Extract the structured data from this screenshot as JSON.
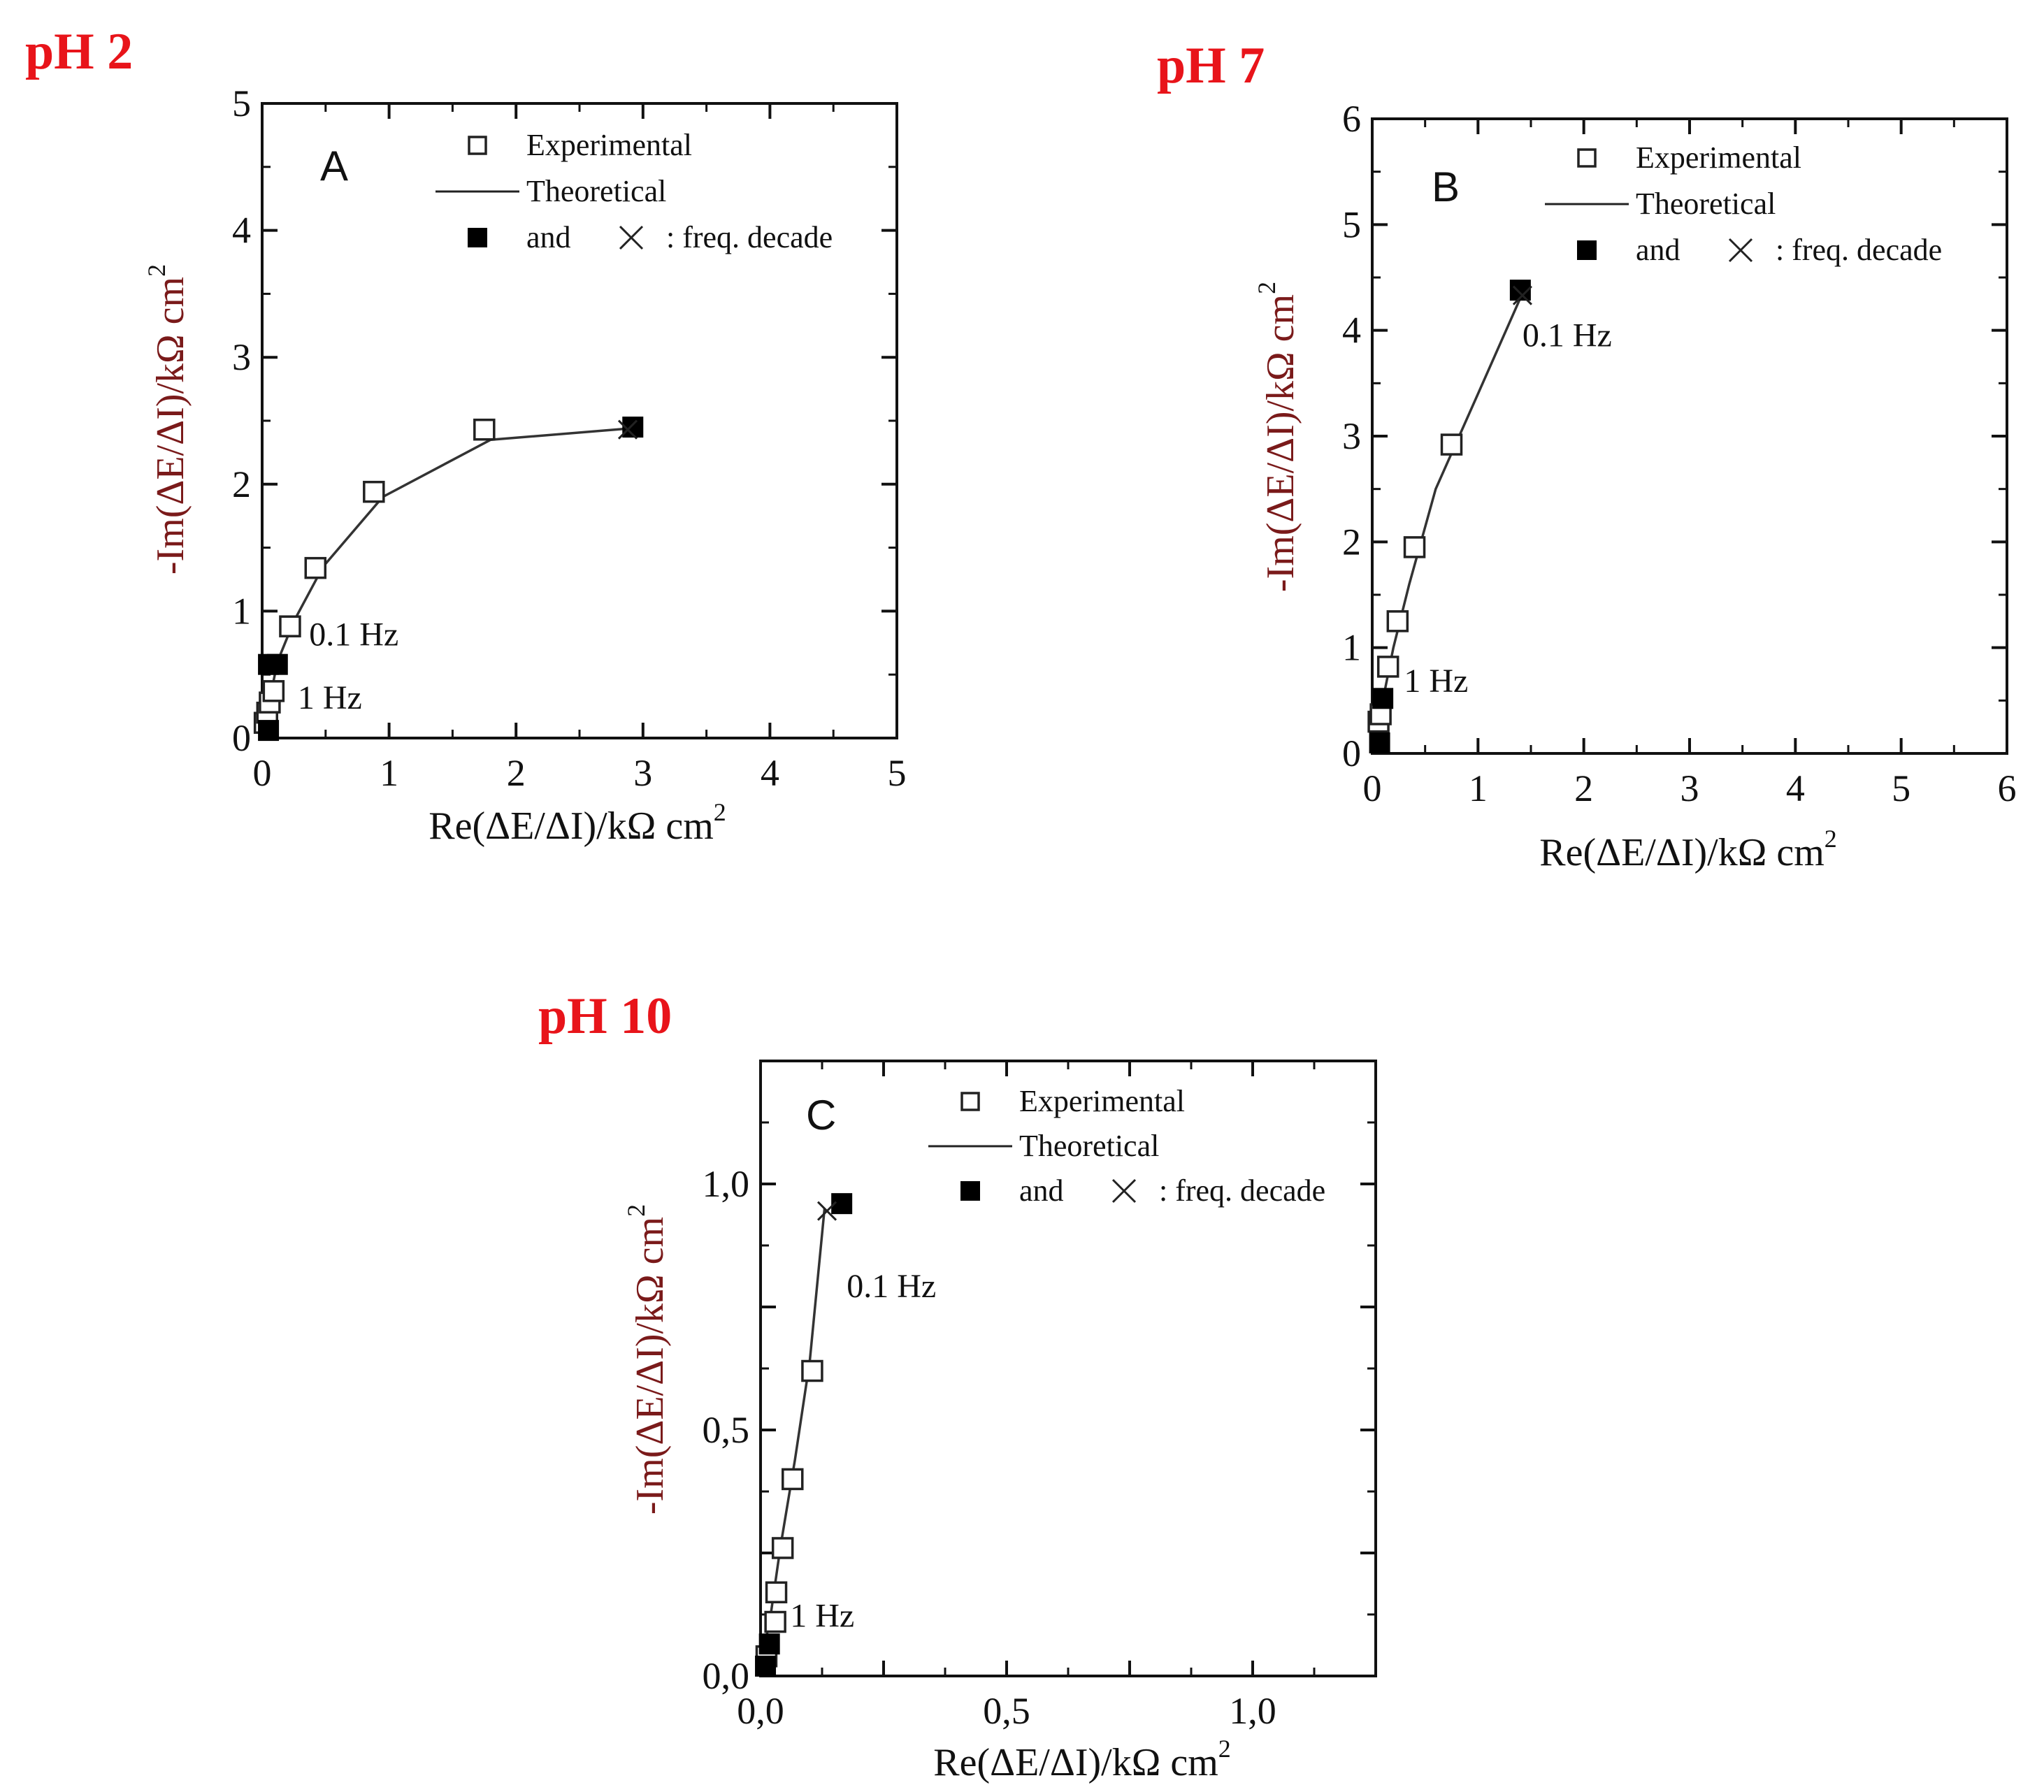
{
  "chart_data": [
    {
      "type": "scatter",
      "id": "A",
      "panel_label": "A",
      "title": "pH 2",
      "xlabel": "Re(ΔE/ΔI)/kΩ cm",
      "ylabel": "-Im(ΔE/ΔI)/kΩ cm",
      "unit_superscript": "2",
      "xlim": [
        0,
        5
      ],
      "ylim": [
        0,
        5
      ],
      "xticks": [
        0,
        1,
        2,
        3,
        4,
        5
      ],
      "yticks": [
        0,
        1,
        2,
        3,
        4,
        5
      ],
      "xtick_labels": [
        "0",
        "1",
        "2",
        "3",
        "4",
        "5"
      ],
      "ytick_labels": [
        "0",
        "1",
        "2",
        "3",
        "4",
        "5"
      ],
      "legend": {
        "position": "top-right",
        "experimental": "Experimental",
        "theoretical": "Theoretical",
        "and": "and",
        "freq": ": freq. decade"
      },
      "series": [
        {
          "name": "Experimental",
          "marker": "open-square",
          "x": [
            0.02,
            0.04,
            0.06,
            0.09,
            0.22,
            0.42,
            0.88,
            1.75
          ],
          "y": [
            0.12,
            0.2,
            0.28,
            0.37,
            0.88,
            1.34,
            1.94,
            2.43
          ]
        },
        {
          "name": "Theoretical",
          "marker": "line",
          "x": [
            0.03,
            0.06,
            0.12,
            0.25,
            0.48,
            0.95,
            1.8,
            2.9
          ],
          "y": [
            0.12,
            0.3,
            0.6,
            0.92,
            1.35,
            1.9,
            2.35,
            2.44
          ]
        },
        {
          "name": "Frequency decade (experimental)",
          "marker": "filled-square",
          "x": [
            0.05,
            0.05,
            0.12,
            2.92
          ],
          "y": [
            0.06,
            0.58,
            0.58,
            2.45
          ]
        },
        {
          "name": "Frequency decade (theoretical)",
          "marker": "cross",
          "x": [
            2.88
          ],
          "y": [
            2.43
          ]
        }
      ],
      "annotations": [
        {
          "text": "0.1 Hz",
          "x": 0.37,
          "y": 0.73
        },
        {
          "text": "1 Hz",
          "x": 0.28,
          "y": 0.23
        }
      ]
    },
    {
      "type": "scatter",
      "id": "B",
      "panel_label": "B",
      "title": "pH 7",
      "xlabel": "Re(ΔE/ΔI)/kΩ cm",
      "ylabel": "-Im(ΔE/ΔI)/kΩ cm",
      "unit_superscript": "2",
      "xlim": [
        0,
        6
      ],
      "ylim": [
        0,
        6
      ],
      "xticks": [
        0,
        1,
        2,
        3,
        4,
        5,
        6
      ],
      "yticks": [
        0,
        1,
        2,
        3,
        4,
        5,
        6
      ],
      "xtick_labels": [
        "0",
        "1",
        "2",
        "3",
        "4",
        "5",
        "6"
      ],
      "ytick_labels": [
        "0",
        "1",
        "2",
        "3",
        "4",
        "5",
        "6"
      ],
      "legend": {
        "position": "top-right",
        "experimental": "Experimental",
        "theoretical": "Theoretical",
        "and": "and",
        "freq": ": freq. decade"
      },
      "series": [
        {
          "name": "Experimental",
          "marker": "open-square",
          "x": [
            0.06,
            0.08,
            0.15,
            0.24,
            0.4,
            0.75
          ],
          "y": [
            0.3,
            0.37,
            0.82,
            1.25,
            1.95,
            2.92
          ]
        },
        {
          "name": "Theoretical",
          "marker": "line",
          "x": [
            0.05,
            0.1,
            0.2,
            0.35,
            0.6,
            1.0,
            1.42
          ],
          "y": [
            0.1,
            0.5,
            1.0,
            1.6,
            2.5,
            3.4,
            4.35
          ]
        },
        {
          "name": "Frequency decade (experimental)",
          "marker": "filled-square",
          "x": [
            0.07,
            0.1,
            1.4
          ],
          "y": [
            0.1,
            0.52,
            4.38
          ]
        },
        {
          "name": "Frequency decade (theoretical)",
          "marker": "cross",
          "x": [
            1.42
          ],
          "y": [
            4.33
          ]
        }
      ],
      "annotations": [
        {
          "text": "0.1 Hz",
          "x": 1.42,
          "y": 3.85
        },
        {
          "text": "1 Hz",
          "x": 0.3,
          "y": 0.58
        }
      ]
    },
    {
      "type": "scatter",
      "id": "C",
      "panel_label": "C",
      "title": "pH 10",
      "xlabel": "Re(ΔE/ΔI)/kΩ cm",
      "ylabel": "-Im(ΔE/ΔI)/kΩ cm",
      "unit_superscript": "2",
      "xlim": [
        0,
        1.25
      ],
      "ylim": [
        0,
        1.25
      ],
      "xticks": [
        0,
        0.25,
        0.5,
        0.75,
        1.0,
        1.25
      ],
      "yticks": [
        0,
        0.25,
        0.5,
        0.75,
        1.0,
        1.25
      ],
      "xtick_labels": [
        "0,0",
        "",
        "0,5",
        "",
        "1,0",
        ""
      ],
      "ytick_labels": [
        "0,0",
        "",
        "0,5",
        "",
        "1,0",
        ""
      ],
      "legend": {
        "position": "top-right",
        "experimental": "Experimental",
        "theoretical": "Theoretical",
        "and": "and",
        "freq": ": freq. decade"
      },
      "series": [
        {
          "name": "Experimental",
          "marker": "open-square",
          "x": [
            0.012,
            0.03,
            0.032,
            0.045,
            0.065,
            0.105
          ],
          "y": [
            0.04,
            0.11,
            0.17,
            0.26,
            0.4,
            0.62
          ]
        },
        {
          "name": "Theoretical",
          "marker": "line",
          "x": [
            0.0,
            0.02,
            0.04,
            0.07,
            0.1,
            0.13
          ],
          "y": [
            0.02,
            0.12,
            0.26,
            0.44,
            0.64,
            0.95
          ]
        },
        {
          "name": "Frequency decade (experimental)",
          "marker": "filled-square",
          "x": [
            0.01,
            0.018,
            0.165
          ],
          "y": [
            0.02,
            0.065,
            0.96
          ]
        },
        {
          "name": "Frequency decade (theoretical)",
          "marker": "cross",
          "x": [
            0.135
          ],
          "y": [
            0.945
          ]
        }
      ],
      "annotations": [
        {
          "text": "0.1 Hz",
          "x": 0.175,
          "y": 0.77
        },
        {
          "text": "1 Hz",
          "x": 0.06,
          "y": 0.1
        }
      ]
    }
  ]
}
